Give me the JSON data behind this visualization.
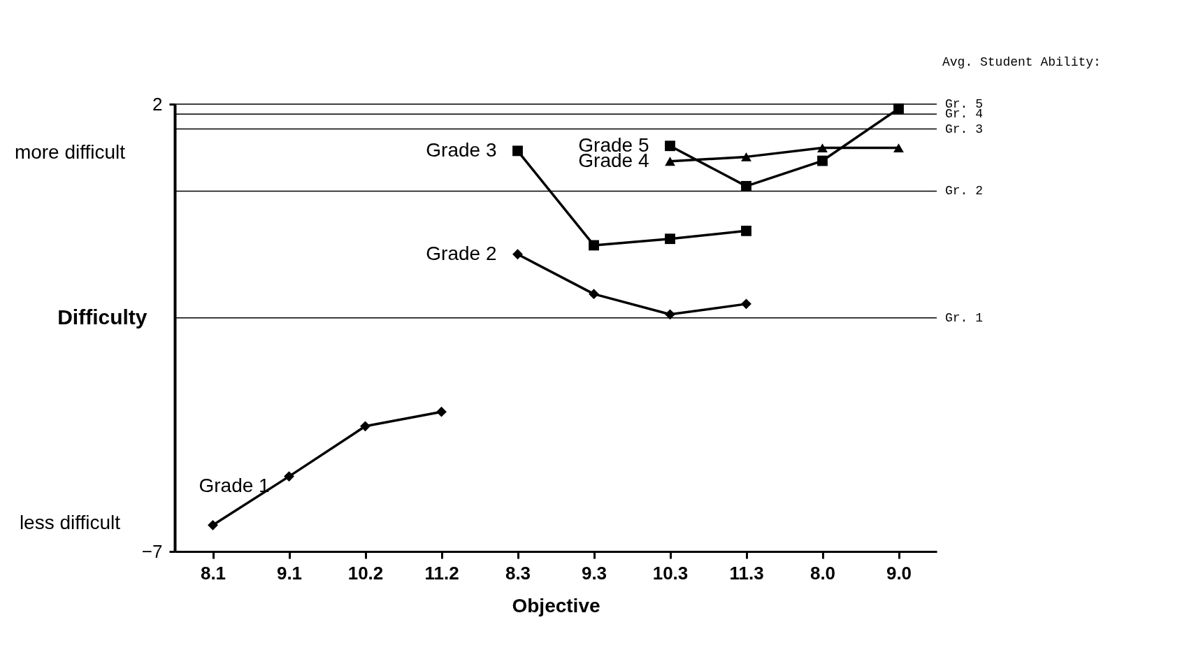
{
  "chart_data": {
    "type": "line",
    "xlabel": "Objective",
    "ylabel": "Difficulty",
    "categories": [
      "8.1",
      "9.1",
      "10.2",
      "11.2",
      "8.3",
      "9.3",
      "10.3",
      "11.3",
      "8.0",
      "9.0"
    ],
    "series": [
      {
        "name": "Grade 1",
        "color": "#000000",
        "marker": "diamond",
        "values": [
          -6.47,
          -5.49,
          -4.48,
          -4.19,
          null,
          null,
          null,
          null,
          null,
          null
        ]
      },
      {
        "name": "Grade 2",
        "color": "#000000",
        "marker": "diamond",
        "values": [
          null,
          null,
          null,
          null,
          -1.02,
          -1.82,
          -2.23,
          -2.02,
          null,
          null
        ]
      },
      {
        "name": "Grade 3",
        "color": "#000000",
        "marker": "square",
        "values": [
          null,
          null,
          null,
          null,
          1.06,
          -0.84,
          -0.71,
          -0.55,
          null,
          null
        ]
      },
      {
        "name": "Grade 4",
        "color": "#000000",
        "marker": "triangle",
        "values": [
          null,
          null,
          null,
          null,
          null,
          null,
          0.85,
          0.94,
          1.12,
          1.12
        ]
      },
      {
        "name": "Grade 5",
        "color": "#000000",
        "marker": "square",
        "values": [
          null,
          null,
          null,
          null,
          null,
          null,
          1.16,
          0.35,
          0.86,
          1.91
        ]
      }
    ],
    "ylim": [
      -7,
      2
    ],
    "yticks": [
      -7,
      2
    ],
    "grid": false,
    "ref_lines": [
      {
        "axis": "y",
        "value": 2.0,
        "label": "Gr. 5"
      },
      {
        "axis": "y",
        "value": 1.8,
        "label": "Gr. 4"
      },
      {
        "axis": "y",
        "value": 1.5,
        "label": "Gr. 3"
      },
      {
        "axis": "y",
        "value": 0.25,
        "label": "Gr. 2"
      },
      {
        "axis": "y",
        "value": -2.3,
        "label": "Gr. 1"
      }
    ],
    "annotations": [
      "more difficult",
      "less difficult",
      "Avg. Student Ability:"
    ]
  }
}
